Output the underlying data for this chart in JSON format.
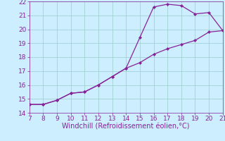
{
  "xlabel": "Windchill (Refroidissement éolien,°C)",
  "xlim": [
    7,
    21
  ],
  "ylim": [
    14,
    22
  ],
  "xticks": [
    7,
    8,
    9,
    10,
    11,
    12,
    13,
    14,
    15,
    16,
    17,
    18,
    19,
    20,
    21
  ],
  "yticks": [
    14,
    15,
    16,
    17,
    18,
    19,
    20,
    21,
    22
  ],
  "line1_x": [
    7,
    8,
    9,
    10,
    11,
    12,
    13,
    14,
    15,
    16,
    17,
    18,
    19,
    20,
    21
  ],
  "line1_y": [
    14.6,
    14.6,
    14.9,
    15.4,
    15.5,
    16.0,
    16.6,
    17.2,
    19.4,
    21.6,
    21.8,
    21.7,
    21.1,
    21.2,
    19.9
  ],
  "line2_x": [
    7,
    8,
    9,
    10,
    11,
    12,
    13,
    14,
    15,
    16,
    17,
    18,
    19,
    20,
    21
  ],
  "line2_y": [
    14.6,
    14.6,
    14.9,
    15.4,
    15.5,
    16.0,
    16.6,
    17.2,
    17.6,
    18.2,
    18.6,
    18.9,
    19.2,
    19.8,
    19.9
  ],
  "line_color": "#882299",
  "bg_color": "#cceeff",
  "grid_color": "#99cccc",
  "tick_color": "#882299",
  "label_color": "#882299",
  "tick_fontsize": 6.5,
  "xlabel_fontsize": 7.0
}
